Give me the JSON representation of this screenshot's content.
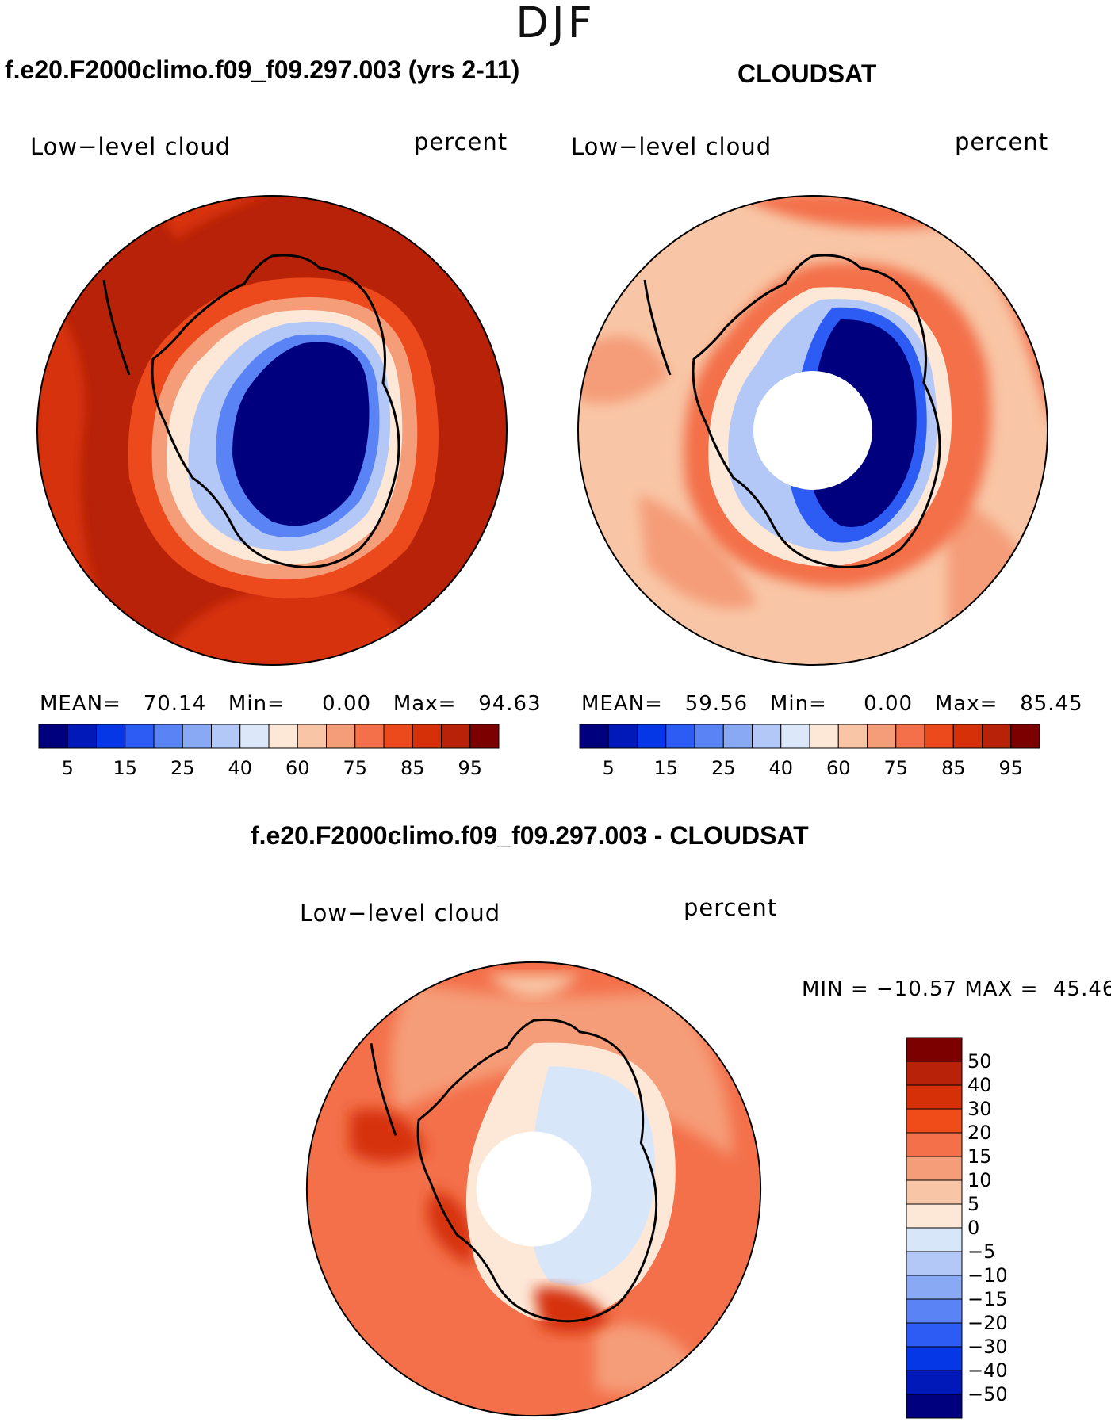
{
  "season": "DJF",
  "titles": {
    "model": "f.e20.F2000climo.f09_f09.297.003 (yrs 2-11)",
    "obs": "CLOUDSAT",
    "diff": "f.e20.F2000climo.f09_f09.297.003 - CLOUDSAT"
  },
  "panels": {
    "model": {
      "variable": "Low−level cloud",
      "units": "percent",
      "mean_label": "MEAN=",
      "mean": "70.14",
      "min_label": "Min=",
      "min": "0.00",
      "max_label": "Max=",
      "max": "94.63"
    },
    "obs": {
      "variable": "Low−level cloud",
      "units": "percent",
      "mean_label": "MEAN=",
      "mean": "59.56",
      "min_label": "Min=",
      "min": "0.00",
      "max_label": "Max=",
      "max": "85.45"
    },
    "diff": {
      "variable": "Low−level cloud",
      "units": "percent",
      "min_label": "MIN =",
      "min": "−10.57",
      "max_label": "MAX =",
      "max": "45.46"
    }
  },
  "colorbar_abs": {
    "colors": [
      "#00007f",
      "#0019b8",
      "#0537e6",
      "#2d5cf4",
      "#5a84f5",
      "#8aa9f5",
      "#b4c8f7",
      "#dce8fa",
      "#fde8d8",
      "#f8c6a6",
      "#f59c78",
      "#f3704a",
      "#ec4a1c",
      "#d63008",
      "#b82208",
      "#7d0000"
    ],
    "tick_labels": [
      "5",
      "15",
      "25",
      "40",
      "60",
      "75",
      "85",
      "95"
    ]
  },
  "colorbar_diff": {
    "colors": [
      "#7d0000",
      "#b82208",
      "#d63008",
      "#ef4c1a",
      "#f3704a",
      "#f59c78",
      "#f8c6a6",
      "#fde8d8",
      "#d8e6fa",
      "#b4c8f7",
      "#8aa9f5",
      "#5a84f5",
      "#2d5cf4",
      "#0537e6",
      "#0019b8",
      "#00007f"
    ],
    "tick_labels": [
      "50",
      "40",
      "30",
      "20",
      "15",
      "10",
      "5",
      "0",
      "−5",
      "−10",
      "−15",
      "−20",
      "−30",
      "−40",
      "−50"
    ]
  }
}
